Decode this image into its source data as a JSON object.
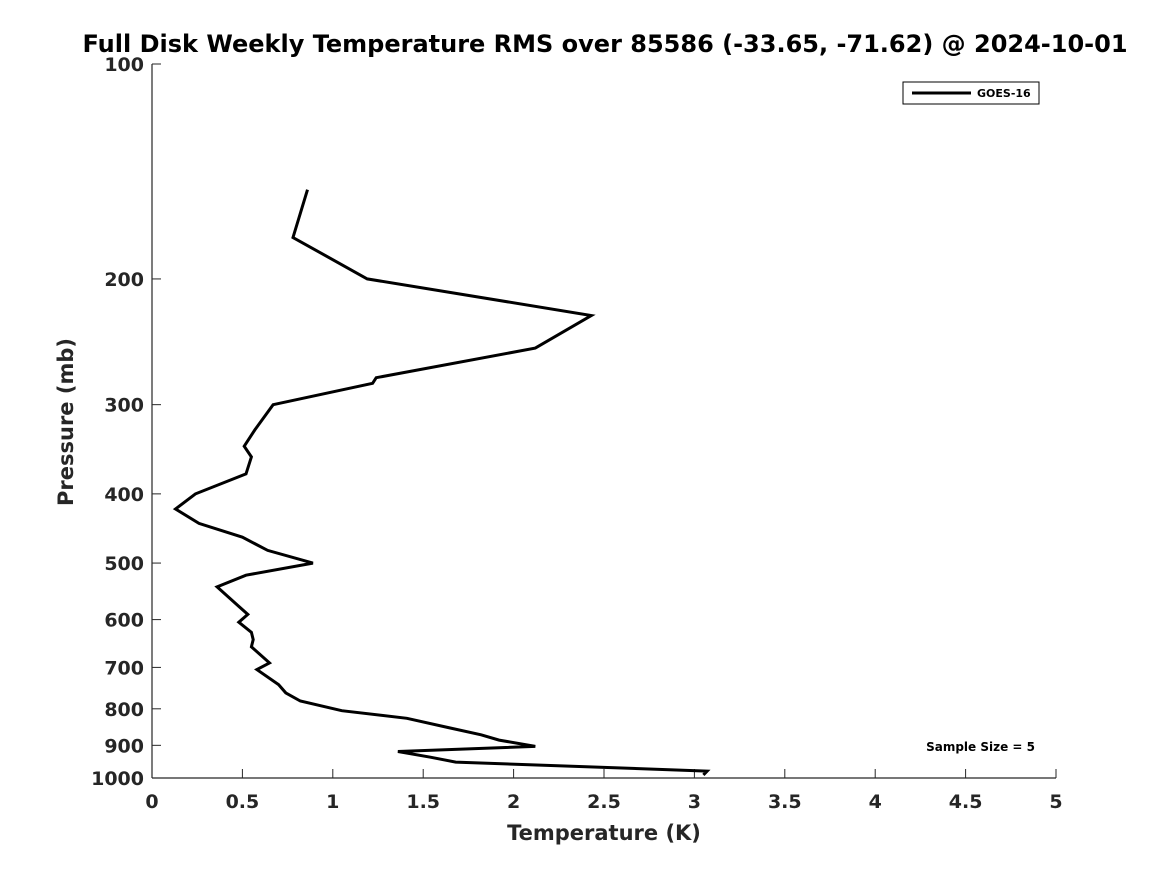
{
  "chart_data": {
    "type": "line",
    "title": "Full Disk Weekly Temperature RMS over 85586 (-33.65, -71.62) @ 2024-10-01",
    "xlabel": "Temperature (K)",
    "ylabel": "Pressure (mb)",
    "xlim": [
      0,
      5
    ],
    "ylim": [
      100,
      1000
    ],
    "y_scale": "log",
    "y_reversed": true,
    "x_ticks": [
      "0",
      "0.5",
      "1",
      "1.5",
      "2",
      "2.5",
      "3",
      "3.5",
      "4",
      "4.5",
      "5"
    ],
    "y_ticks": [
      "100",
      "200",
      "300",
      "400",
      "500",
      "600",
      "700",
      "800",
      "900",
      "1000"
    ],
    "grid": false,
    "legend_position": "top-right",
    "series": [
      {
        "name": "GOES-16",
        "color": "#000000",
        "points": [
          [
            0.86,
            150
          ],
          [
            0.78,
            175
          ],
          [
            1.19,
            200
          ],
          [
            2.43,
            225
          ],
          [
            2.12,
            250
          ],
          [
            1.24,
            275
          ],
          [
            1.22,
            280
          ],
          [
            0.67,
            300
          ],
          [
            0.57,
            325
          ],
          [
            0.51,
            343
          ],
          [
            0.55,
            355
          ],
          [
            0.52,
            375
          ],
          [
            0.24,
            400
          ],
          [
            0.13,
            420
          ],
          [
            0.26,
            440
          ],
          [
            0.5,
            460
          ],
          [
            0.64,
            480
          ],
          [
            0.89,
            500
          ],
          [
            0.52,
            520
          ],
          [
            0.36,
            540
          ],
          [
            0.48,
            575
          ],
          [
            0.53,
            590
          ],
          [
            0.48,
            605
          ],
          [
            0.55,
            625
          ],
          [
            0.56,
            640
          ],
          [
            0.55,
            655
          ],
          [
            0.65,
            690
          ],
          [
            0.58,
            705
          ],
          [
            0.7,
            740
          ],
          [
            0.74,
            760
          ],
          [
            0.82,
            780
          ],
          [
            1.05,
            805
          ],
          [
            1.41,
            825
          ],
          [
            1.64,
            850
          ],
          [
            1.82,
            870
          ],
          [
            1.92,
            885
          ],
          [
            2.12,
            903
          ],
          [
            1.36,
            918
          ],
          [
            1.54,
            935
          ],
          [
            1.68,
            950
          ],
          [
            3.07,
            978
          ],
          [
            3.05,
            990
          ]
        ]
      }
    ],
    "annotations": [
      "Sample Size = 5"
    ]
  }
}
